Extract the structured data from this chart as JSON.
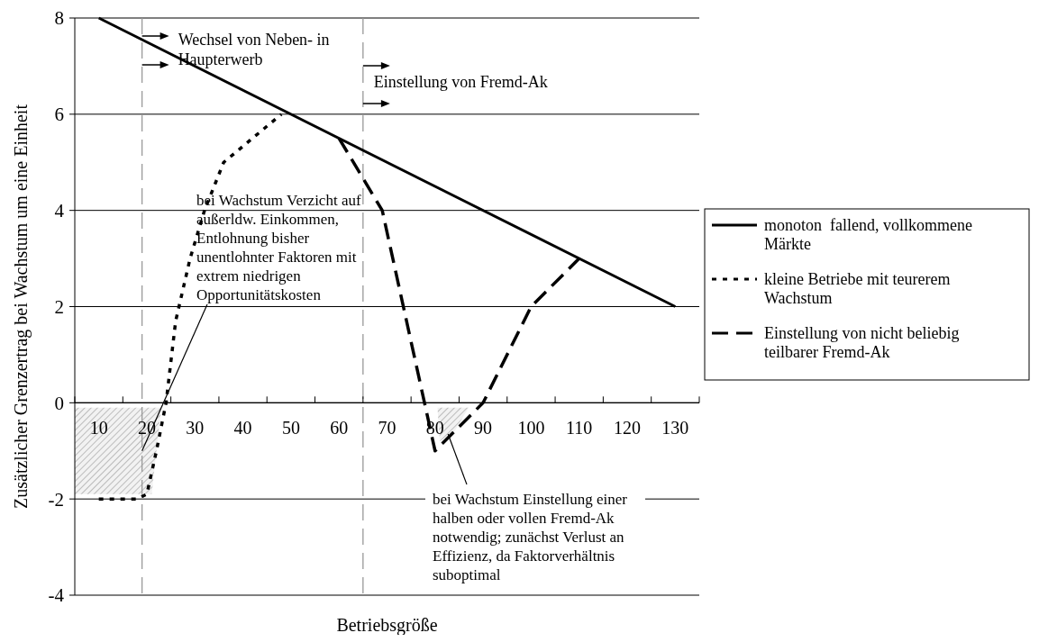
{
  "chart_data": {
    "type": "line",
    "xlabel": "Betriebsgröße",
    "ylabel": "Zusätzlicher Grenzertrag bei Wachstum um eine Einheit",
    "xlim": [
      5,
      135
    ],
    "xticks": [
      {
        "value": 5,
        "label": null
      },
      {
        "value": 10,
        "label": "10"
      },
      {
        "value": 15,
        "label": null
      },
      {
        "value": 20,
        "label": "20"
      },
      {
        "value": 25,
        "label": null
      },
      {
        "value": 30,
        "label": "30"
      },
      {
        "value": 35,
        "label": null
      },
      {
        "value": 40,
        "label": "40"
      },
      {
        "value": 45,
        "label": null
      },
      {
        "value": 50,
        "label": "50"
      },
      {
        "value": 55,
        "label": null
      },
      {
        "value": 60,
        "label": "60"
      },
      {
        "value": 65,
        "label": null
      },
      {
        "value": 70,
        "label": "70"
      },
      {
        "value": 75,
        "label": null
      },
      {
        "value": 80,
        "label": "80"
      },
      {
        "value": 85,
        "label": null
      },
      {
        "value": 90,
        "label": "90"
      },
      {
        "value": 95,
        "label": null
      },
      {
        "value": 100,
        "label": "100"
      },
      {
        "value": 105,
        "label": null
      },
      {
        "value": 110,
        "label": "110"
      },
      {
        "value": 115,
        "label": null
      },
      {
        "value": 120,
        "label": "120"
      },
      {
        "value": 125,
        "label": null
      },
      {
        "value": 130,
        "label": "130"
      },
      {
        "value": 135,
        "label": null
      }
    ],
    "ylim": [
      -4,
      8
    ],
    "yticks": [
      -4,
      -2,
      0,
      2,
      4,
      6,
      8
    ],
    "grid": "y",
    "legend": "right",
    "series": [
      {
        "name": "monoton  fallend, vollkommene Märkte",
        "color": "#000000",
        "line_style": "solid",
        "x": [
          10,
          130
        ],
        "values": [
          8,
          2
        ]
      },
      {
        "name": "kleine Betriebe mit teurerem Wachstum",
        "color": "#000000",
        "line_style": "dotted",
        "x": [
          10,
          18,
          20,
          22,
          24,
          26,
          29,
          32,
          36,
          42,
          48
        ],
        "values": [
          -2,
          -2,
          -1.9,
          -1,
          0,
          1.7,
          3,
          4,
          5,
          5.5,
          6
        ]
      },
      {
        "name": "Einstellung von nicht beliebig teilbarer Fremd-Ak",
        "color": "#000000",
        "line_style": "dashed",
        "x": [
          60,
          69,
          80,
          90,
          100,
          110
        ],
        "values": [
          5.5,
          4,
          -1,
          0,
          2,
          3
        ]
      }
    ],
    "ref_lines": [
      {
        "axis": "x",
        "value": 19,
        "label": "Wechsel von Neben- in Haupterwerb",
        "color": "#999999",
        "line_style": "dashed"
      },
      {
        "axis": "x",
        "value": 65,
        "label": "Einstellung von Fremd-Ak",
        "color": "#999999",
        "line_style": "dashed"
      }
    ],
    "annotations": [
      {
        "text": "bei Wachstum Verzicht auf außerldw. Einkommen, Entlohnung bisher unentlohnter Faktoren mit extrem niedrigen Opportunitätskosten",
        "x": 19,
        "y": -1
      },
      {
        "text": "bei Wachstum Einstellung einer halben oder vollen Fremd-Ak notwendig; zunächst Verlust an Effizienz, da Faktorverhältnis suboptimal",
        "x": 82.7,
        "y": -0.65
      }
    ]
  }
}
